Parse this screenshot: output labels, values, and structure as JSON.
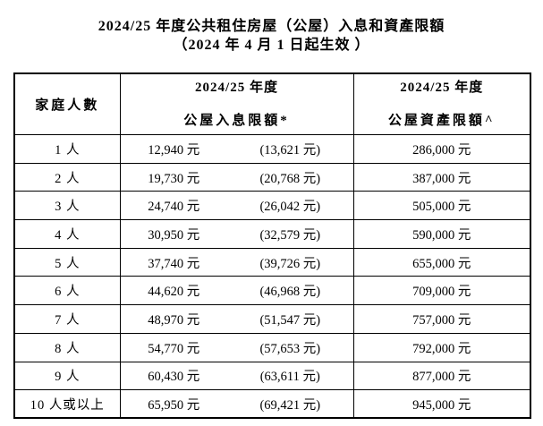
{
  "title": {
    "line1": "2024/25 年度公共租住房屋（公屋）入息和資產限額",
    "line2": "（2024 年 4 月 1 日起生效 ）"
  },
  "table": {
    "header": {
      "household": "家庭人數",
      "income_year": "2024/25 年度",
      "income_label": "公屋入息限額*",
      "asset_year": "2024/25 年度",
      "asset_label": "公屋資產限額^"
    },
    "rows": [
      {
        "household": "1 人",
        "income": "12,940 元",
        "income_note": "(13,621 元)",
        "asset": "286,000 元"
      },
      {
        "household": "2 人",
        "income": "19,730 元",
        "income_note": "(20,768 元)",
        "asset": "387,000 元"
      },
      {
        "household": "3 人",
        "income": "24,740 元",
        "income_note": "(26,042 元)",
        "asset": "505,000 元"
      },
      {
        "household": "4 人",
        "income": "30,950 元",
        "income_note": "(32,579 元)",
        "asset": "590,000 元"
      },
      {
        "household": "5 人",
        "income": "37,740 元",
        "income_note": "(39,726 元)",
        "asset": "655,000 元"
      },
      {
        "household": "6 人",
        "income": "44,620 元",
        "income_note": "(46,968 元)",
        "asset": "709,000 元"
      },
      {
        "household": "7 人",
        "income": "48,970 元",
        "income_note": "(51,547 元)",
        "asset": "757,000 元"
      },
      {
        "household": "8 人",
        "income": "54,770 元",
        "income_note": "(57,653 元)",
        "asset": "792,000 元"
      },
      {
        "household": "9 人",
        "income": "60,430 元",
        "income_note": "(63,611 元)",
        "asset": "877,000 元"
      },
      {
        "household": "10 人或以上",
        "income": "65,950 元",
        "income_note": "(69,421 元)",
        "asset": "945,000 元"
      }
    ]
  },
  "colors": {
    "text": "#000000",
    "border": "#000000",
    "background": "#ffffff"
  }
}
